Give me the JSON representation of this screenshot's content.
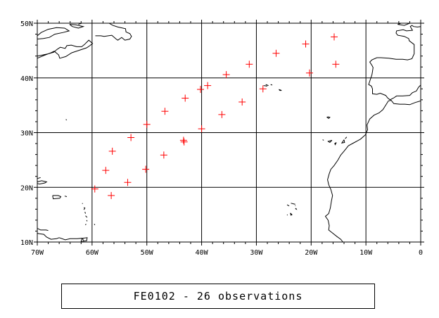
{
  "map": {
    "extent": {
      "lon_min": -70,
      "lon_max": 0,
      "lat_min": 10,
      "lat_max": 50
    },
    "lon_labels": [
      {
        "lon": -70,
        "text": "70W"
      },
      {
        "lon": -60,
        "text": "60W"
      },
      {
        "lon": -50,
        "text": "50W"
      },
      {
        "lon": -40,
        "text": "40W"
      },
      {
        "lon": -30,
        "text": "30W"
      },
      {
        "lon": -20,
        "text": "20W"
      },
      {
        "lon": -10,
        "text": "10W"
      },
      {
        "lon": 0,
        "text": "0"
      }
    ],
    "lat_labels": [
      {
        "lat": 10,
        "text": "10N"
      },
      {
        "lat": 20,
        "text": "20N"
      },
      {
        "lat": 30,
        "text": "30N"
      },
      {
        "lat": 40,
        "text": "40N"
      },
      {
        "lat": 50,
        "text": "50N"
      }
    ],
    "grid_lons": [
      -60,
      -50,
      -40,
      -30,
      -20,
      -10
    ],
    "grid_lats": [
      20,
      30,
      40
    ],
    "marker_color": "#ff0000",
    "coast_color": "#000000",
    "observations": [
      {
        "lon": -59.5,
        "lat": 19.7
      },
      {
        "lon": -57.5,
        "lat": 23.1
      },
      {
        "lon": -56.3,
        "lat": 26.6
      },
      {
        "lon": -56.5,
        "lat": 18.5
      },
      {
        "lon": -53.5,
        "lat": 20.9
      },
      {
        "lon": -52.9,
        "lat": 29.1
      },
      {
        "lon": -50.2,
        "lat": 23.3
      },
      {
        "lon": -50.0,
        "lat": 31.5
      },
      {
        "lon": -46.9,
        "lat": 25.9
      },
      {
        "lon": -46.7,
        "lat": 33.9
      },
      {
        "lon": -43.2,
        "lat": 28.3
      },
      {
        "lon": -43.0,
        "lat": 36.3
      },
      {
        "lon": -40.0,
        "lat": 30.7
      },
      {
        "lon": -40.2,
        "lat": 37.9
      },
      {
        "lon": -38.9,
        "lat": 38.6
      },
      {
        "lon": -35.5,
        "lat": 40.6
      },
      {
        "lon": -36.3,
        "lat": 33.3
      },
      {
        "lon": -32.6,
        "lat": 35.6
      },
      {
        "lon": -31.3,
        "lat": 42.5
      },
      {
        "lon": -28.8,
        "lat": 38.0
      },
      {
        "lon": -26.4,
        "lat": 44.5
      },
      {
        "lon": -21.0,
        "lat": 46.2
      },
      {
        "lon": -20.3,
        "lat": 40.9
      },
      {
        "lon": -15.8,
        "lat": 47.5
      },
      {
        "lon": -15.5,
        "lat": 42.5
      },
      {
        "lon": -43.3,
        "lat": 28.6
      }
    ],
    "coastlines": [
      [
        [
          -70,
          44.0
        ],
        [
          -69,
          44.2
        ],
        [
          -68,
          44.4
        ],
        [
          -67,
          44.7
        ],
        [
          -66.4,
          45.2
        ],
        [
          -65.8,
          45.6
        ],
        [
          -64.9,
          45.4
        ],
        [
          -64.6,
          45.9
        ],
        [
          -63.8,
          46.0
        ],
        [
          -62.8,
          45.7
        ],
        [
          -61.9,
          45.7
        ],
        [
          -61.4,
          46.1
        ],
        [
          -60.6,
          46.9
        ],
        [
          -59.9,
          46.3
        ],
        [
          -60.4,
          45.9
        ],
        [
          -61.0,
          45.5
        ],
        [
          -62.5,
          45.0
        ],
        [
          -63.7,
          44.6
        ],
        [
          -64.8,
          43.9
        ],
        [
          -65.9,
          43.6
        ],
        [
          -66.1,
          44.2
        ],
        [
          -66.9,
          44.9
        ],
        [
          -67.5,
          44.6
        ],
        [
          -68.8,
          44.1
        ],
        [
          -70,
          43.6
        ]
      ],
      [
        [
          -70,
          47.1
        ],
        [
          -68.9,
          47.2
        ],
        [
          -67.8,
          47.4
        ],
        [
          -66.8,
          48.0
        ],
        [
          -65.3,
          48.3
        ],
        [
          -64.2,
          48.6
        ],
        [
          -65.0,
          49.1
        ],
        [
          -66.5,
          49.2
        ],
        [
          -68.0,
          48.9
        ],
        [
          -69.3,
          48.3
        ],
        [
          -70,
          47.7
        ]
      ],
      [
        [
          -64.1,
          49.8
        ],
        [
          -63.0,
          49.7
        ],
        [
          -61.6,
          49.4
        ],
        [
          -62.5,
          49.1
        ],
        [
          -63.6,
          49.4
        ],
        [
          -64.1,
          49.8
        ]
      ],
      [
        [
          -59.4,
          47.7
        ],
        [
          -58.4,
          47.7
        ],
        [
          -57.8,
          47.6
        ],
        [
          -56.4,
          47.8
        ],
        [
          -55.6,
          47.1
        ],
        [
          -55.3,
          46.9
        ],
        [
          -54.6,
          47.4
        ],
        [
          -54.0,
          46.9
        ],
        [
          -53.1,
          47.1
        ],
        [
          -52.8,
          47.6
        ],
        [
          -53.1,
          48.1
        ],
        [
          -53.8,
          48.4
        ],
        [
          -53.9,
          49.0
        ],
        [
          -55.3,
          49.3
        ],
        [
          -56.2,
          49.6
        ],
        [
          -56.9,
          50.0
        ],
        [
          -57.3,
          50.0
        ]
      ],
      [
        [
          -60.8,
          50.0
        ],
        [
          -61.9,
          50.0
        ],
        [
          -62.5,
          49.8
        ]
      ],
      [
        [
          -70,
          21.0
        ],
        [
          -69.2,
          21.2
        ],
        [
          -68.3,
          21.0
        ],
        [
          -68.6,
          20.8
        ],
        [
          -69.6,
          20.6
        ],
        [
          -70,
          20.7
        ]
      ],
      [
        [
          -70,
          21.6
        ],
        [
          -69.4,
          21.8
        ]
      ],
      [
        [
          -67.2,
          18.5
        ],
        [
          -66.2,
          18.5
        ],
        [
          -65.7,
          18.3
        ],
        [
          -65.9,
          18.0
        ],
        [
          -67.1,
          17.9
        ],
        [
          -67.2,
          18.5
        ]
      ],
      [
        [
          -65.0,
          18.4
        ],
        [
          -64.6,
          18.3
        ]
      ],
      [
        [
          -61.8,
          17.1
        ],
        [
          -61.7,
          17.0
        ]
      ],
      [
        [
          -61.5,
          16.3
        ],
        [
          -61.3,
          16.2
        ],
        [
          -61.5,
          15.9
        ]
      ],
      [
        [
          -61.3,
          15.5
        ],
        [
          -61.2,
          15.2
        ]
      ],
      [
        [
          -61.2,
          14.8
        ],
        [
          -60.9,
          14.5
        ]
      ],
      [
        [
          -61.0,
          14.0
        ],
        [
          -60.9,
          13.8
        ]
      ],
      [
        [
          -61.1,
          13.3
        ],
        [
          -61.2,
          13.1
        ]
      ],
      [
        [
          -59.6,
          13.3
        ],
        [
          -59.5,
          13.1
        ]
      ],
      [
        [
          -70,
          12.5
        ],
        [
          -69.4,
          12.2
        ],
        [
          -68.4,
          12.2
        ],
        [
          -68.0,
          12.1
        ]
      ],
      [
        [
          -66.0,
          10.8
        ],
        [
          -64.9,
          10.4
        ],
        [
          -64.0,
          10.6
        ],
        [
          -62.7,
          10.6
        ],
        [
          -61.8,
          10.7
        ],
        [
          -62.0,
          10.1
        ],
        [
          -61.3,
          10.0
        ]
      ],
      [
        [
          -61.7,
          10.7
        ],
        [
          -60.9,
          10.8
        ],
        [
          -61.0,
          10.2
        ],
        [
          -61.6,
          10.2
        ],
        [
          -61.7,
          10.7
        ]
      ],
      [
        [
          -70,
          11.6
        ],
        [
          -69.6,
          11.5
        ],
        [
          -68.8,
          11.4
        ],
        [
          -68.3,
          10.9
        ],
        [
          -67.5,
          10.5
        ],
        [
          -66.5,
          10.6
        ],
        [
          -66.0,
          10.8
        ]
      ],
      [
        [
          -64.8,
          32.4
        ],
        [
          -64.6,
          32.3
        ]
      ],
      [
        [
          -2.0,
          50.0
        ],
        [
          -3.0,
          49.6
        ],
        [
          -4.2,
          49.8
        ],
        [
          -3.6,
          50.0
        ]
      ],
      [
        [
          -5.1,
          50.0
        ],
        [
          -4.6,
          50.0
        ]
      ],
      [
        [
          0,
          49.4
        ],
        [
          -0.6,
          49.3
        ],
        [
          -1.3,
          49.4
        ],
        [
          -1.6,
          49.6
        ],
        [
          -1.9,
          49.4
        ],
        [
          -1.5,
          48.7
        ],
        [
          -2.6,
          48.6
        ],
        [
          -3.2,
          48.8
        ],
        [
          -4.4,
          48.6
        ],
        [
          -4.5,
          48.2
        ],
        [
          -4.2,
          47.8
        ],
        [
          -3.0,
          47.6
        ],
        [
          -2.2,
          47.2
        ],
        [
          -2.1,
          46.8
        ],
        [
          -1.2,
          46.1
        ],
        [
          -1.2,
          45.3
        ],
        [
          -1.2,
          44.4
        ],
        [
          -1.6,
          43.5
        ],
        [
          -2.4,
          43.3
        ],
        [
          -3.3,
          43.4
        ],
        [
          -4.5,
          43.4
        ],
        [
          -5.8,
          43.6
        ],
        [
          -7.3,
          43.7
        ],
        [
          -8.0,
          43.7
        ],
        [
          -8.9,
          43.3
        ],
        [
          -9.3,
          42.9
        ],
        [
          -8.9,
          42.3
        ],
        [
          -8.7,
          41.9
        ],
        [
          -8.8,
          41.2
        ],
        [
          -8.9,
          40.6
        ],
        [
          -9.3,
          39.4
        ],
        [
          -9.5,
          38.8
        ],
        [
          -9.0,
          38.5
        ],
        [
          -8.8,
          38.0
        ],
        [
          -8.8,
          37.1
        ],
        [
          -8.0,
          37.0
        ],
        [
          -7.4,
          37.2
        ],
        [
          -6.4,
          36.8
        ],
        [
          -6.0,
          36.3
        ],
        [
          -5.6,
          36.0
        ],
        [
          -5.0,
          36.3
        ],
        [
          -4.4,
          36.7
        ],
        [
          -3.3,
          36.7
        ],
        [
          -2.0,
          36.8
        ],
        [
          -1.5,
          37.3
        ],
        [
          -0.8,
          37.6
        ],
        [
          -0.4,
          38.3
        ],
        [
          0,
          38.7
        ]
      ],
      [
        [
          0,
          35.8
        ],
        [
          -1.0,
          35.5
        ],
        [
          -2.0,
          35.1
        ],
        [
          -2.9,
          35.2
        ],
        [
          -3.8,
          35.2
        ],
        [
          -4.9,
          35.3
        ],
        [
          -5.4,
          35.9
        ],
        [
          -5.9,
          35.8
        ],
        [
          -6.4,
          35.0
        ],
        [
          -6.9,
          34.2
        ],
        [
          -7.6,
          33.6
        ],
        [
          -8.5,
          33.2
        ],
        [
          -9.3,
          32.5
        ],
        [
          -9.8,
          31.4
        ],
        [
          -9.7,
          30.5
        ],
        [
          -10.1,
          29.6
        ],
        [
          -11.0,
          28.8
        ],
        [
          -12.1,
          28.2
        ],
        [
          -13.2,
          27.6
        ],
        [
          -14.0,
          26.6
        ],
        [
          -14.6,
          25.9
        ],
        [
          -15.1,
          25.0
        ],
        [
          -15.8,
          24.0
        ],
        [
          -16.4,
          23.3
        ],
        [
          -16.7,
          22.5
        ],
        [
          -17.0,
          21.4
        ],
        [
          -16.8,
          20.5
        ],
        [
          -16.4,
          19.6
        ],
        [
          -16.1,
          18.5
        ],
        [
          -16.3,
          17.5
        ],
        [
          -16.5,
          16.2
        ],
        [
          -16.8,
          15.2
        ],
        [
          -17.4,
          14.7
        ],
        [
          -16.9,
          14.0
        ],
        [
          -16.7,
          13.0
        ],
        [
          -16.8,
          12.2
        ],
        [
          -16.3,
          11.8
        ],
        [
          -15.3,
          11.0
        ],
        [
          -14.6,
          10.5
        ],
        [
          -14.2,
          10.0
        ]
      ],
      [
        [
          -16.9,
          32.9
        ],
        [
          -16.6,
          32.8
        ],
        [
          -16.8,
          32.6
        ],
        [
          -17.1,
          32.8
        ],
        [
          -16.9,
          32.9
        ]
      ],
      [
        [
          -16.2,
          28.6
        ],
        [
          -16.6,
          28.2
        ],
        [
          -16.9,
          28.4
        ],
        [
          -16.2,
          28.6
        ]
      ],
      [
        [
          -15.4,
          28.2
        ],
        [
          -15.7,
          28.0
        ],
        [
          -15.6,
          27.8
        ],
        [
          -15.4,
          28.2
        ]
      ],
      [
        [
          -14.0,
          28.7
        ],
        [
          -13.9,
          28.2
        ],
        [
          -14.4,
          28.1
        ],
        [
          -14.0,
          28.7
        ]
      ],
      [
        [
          -13.5,
          29.2
        ],
        [
          -13.8,
          28.9
        ]
      ],
      [
        [
          -17.9,
          28.7
        ],
        [
          -17.7,
          28.6
        ]
      ],
      [
        [
          -25.9,
          37.9
        ],
        [
          -25.4,
          37.7
        ],
        [
          -25.7,
          37.7
        ],
        [
          -25.9,
          37.9
        ]
      ],
      [
        [
          -28.7,
          38.6
        ],
        [
          -28.0,
          38.5
        ]
      ],
      [
        [
          -28.3,
          38.8
        ],
        [
          -27.8,
          38.6
        ]
      ],
      [
        [
          -27.4,
          38.8
        ],
        [
          -27.1,
          38.7
        ]
      ],
      [
        [
          -23.7,
          17.1
        ],
        [
          -22.9,
          16.9
        ]
      ],
      [
        [
          -24.4,
          16.8
        ],
        [
          -24.0,
          16.6
        ]
      ],
      [
        [
          -22.9,
          16.7
        ],
        [
          -22.9,
          16.6
        ]
      ],
      [
        [
          -23.8,
          15.3
        ],
        [
          -23.5,
          15.0
        ],
        [
          -23.7,
          14.9
        ],
        [
          -23.8,
          15.3
        ]
      ],
      [
        [
          -24.4,
          15.0
        ],
        [
          -24.3,
          14.9
        ]
      ],
      [
        [
          -22.8,
          16.2
        ],
        [
          -22.7,
          16.0
        ],
        [
          -22.9,
          16.1
        ]
      ]
    ]
  },
  "caption": {
    "text": "FE0102 - 26 observations"
  }
}
